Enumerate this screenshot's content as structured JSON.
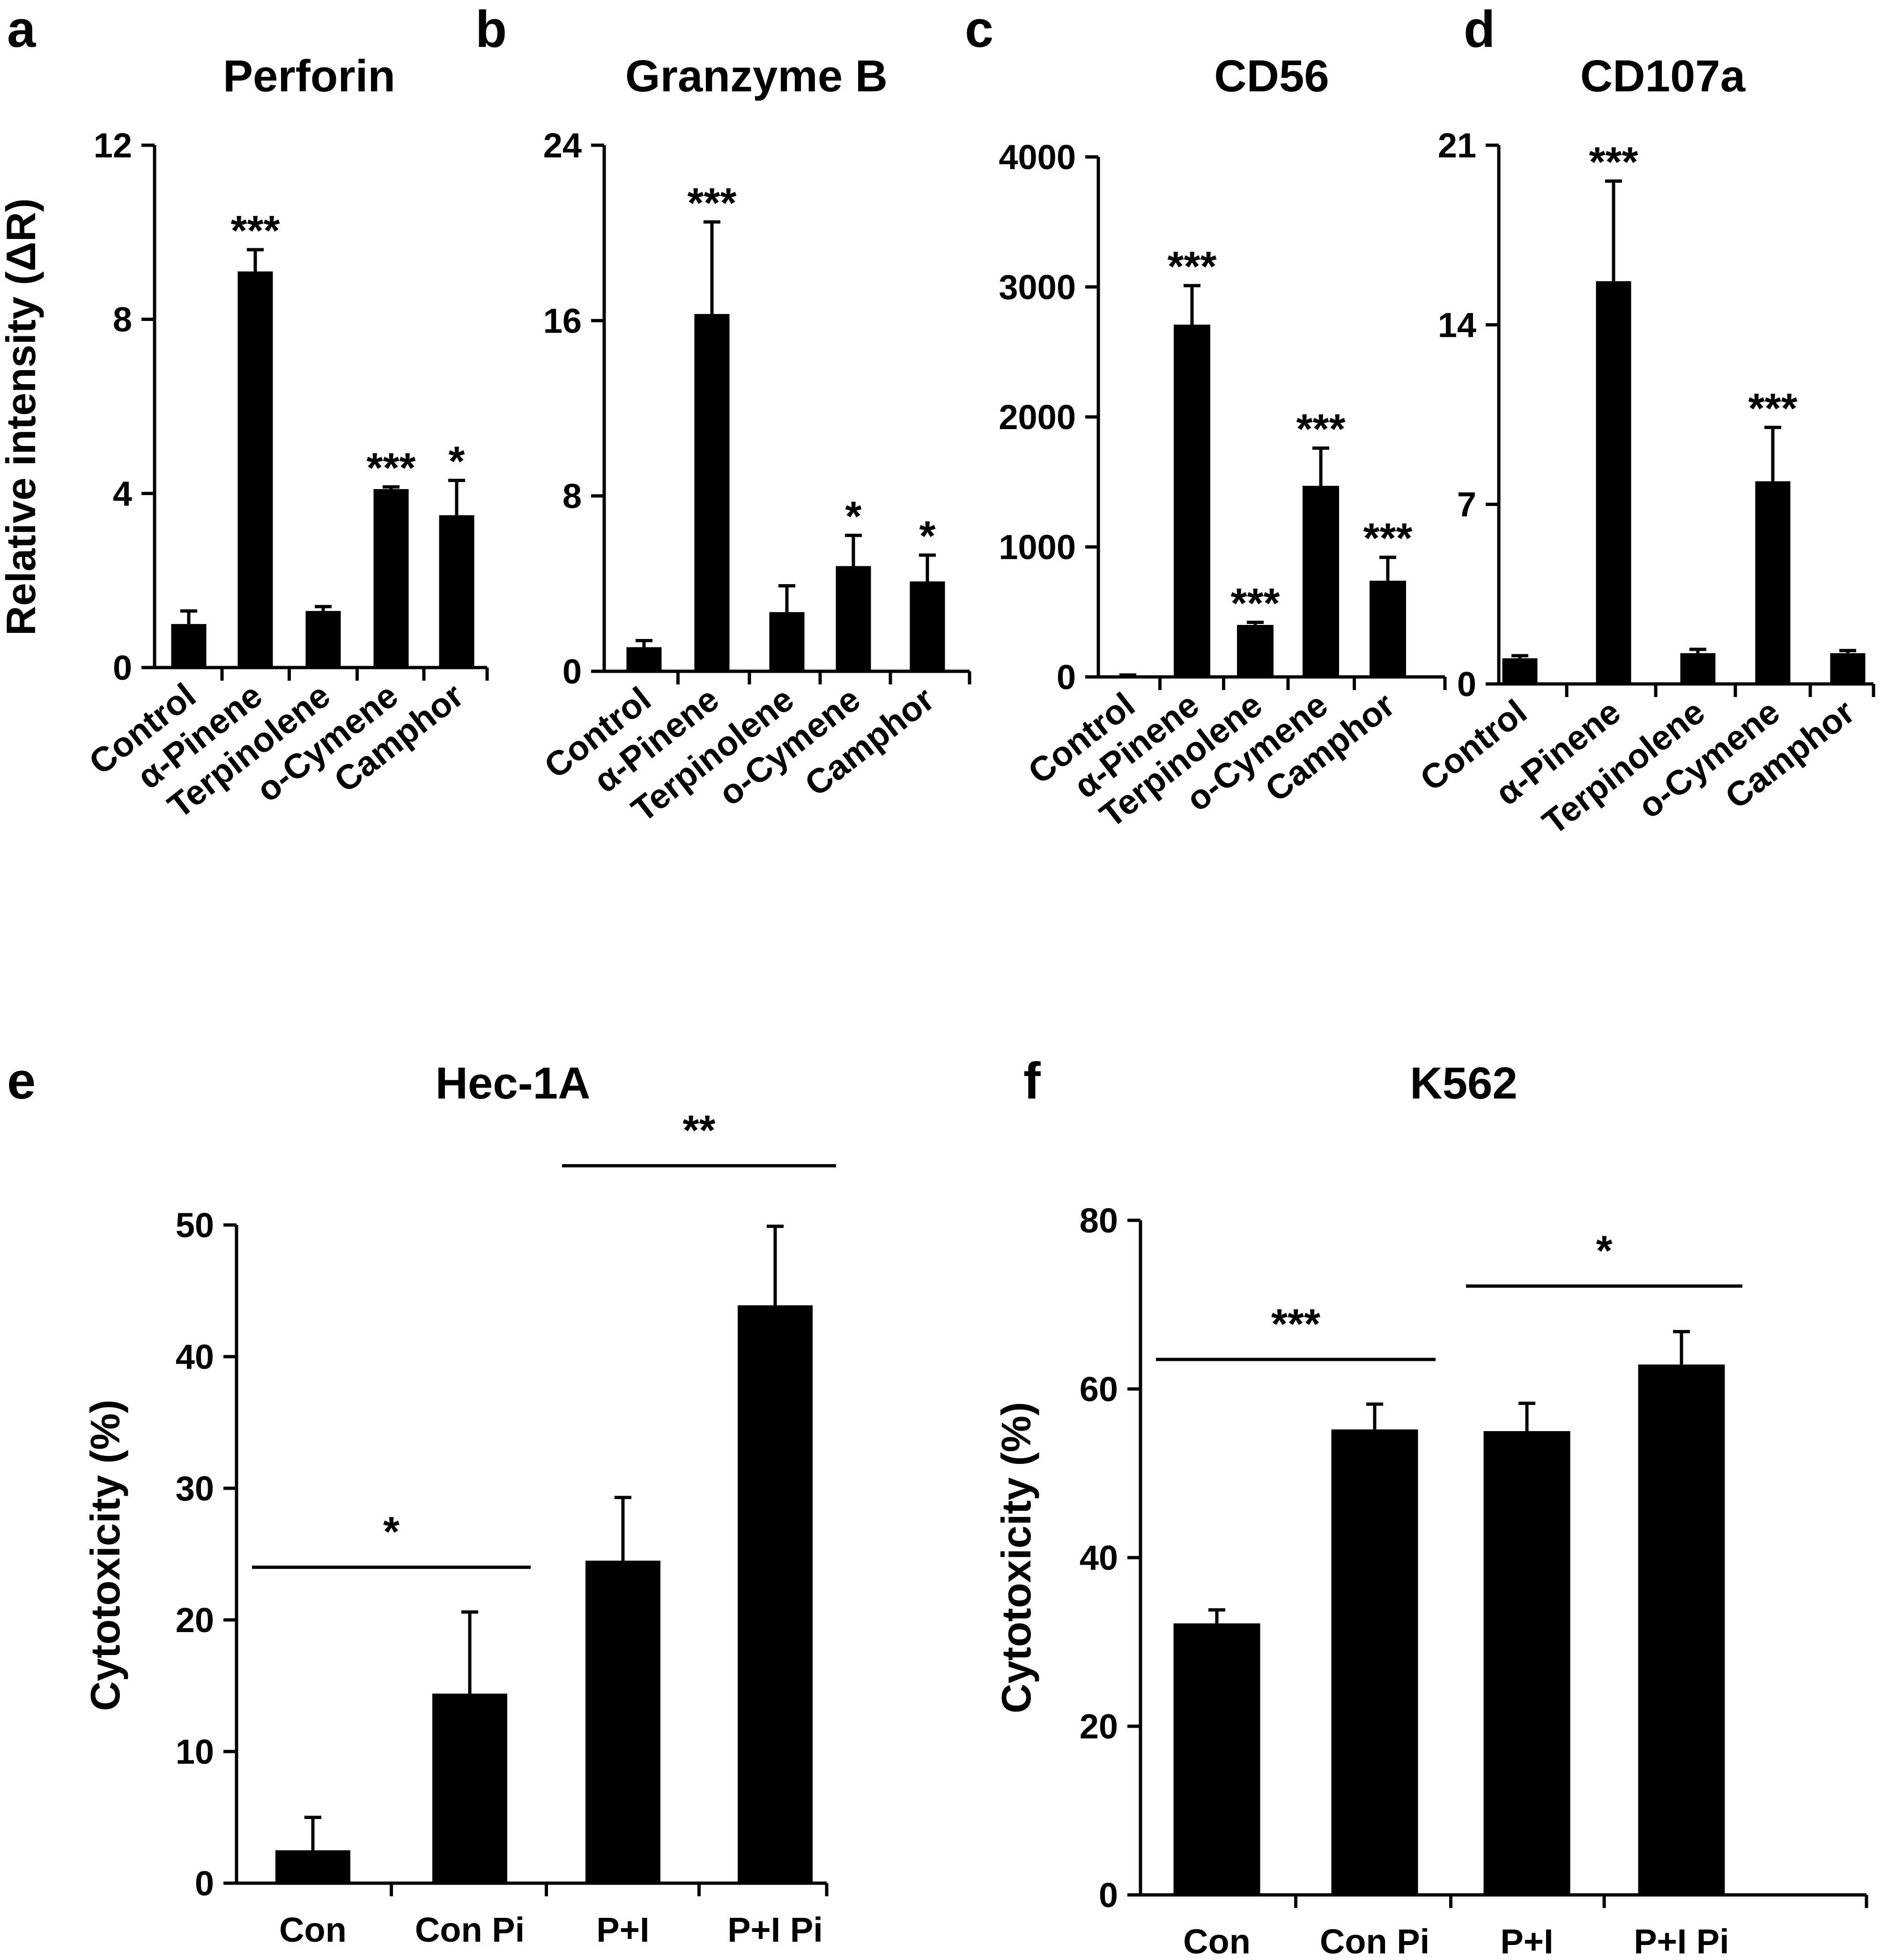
{
  "chart_data": [
    {
      "panel": "a",
      "type": "bar",
      "title": "Perforin",
      "ylabel": "Relative intensity (ΔR)",
      "xlabel": "",
      "categories": [
        "Control",
        "α-Pinene",
        "Terpinolene",
        "o-Cymene",
        "Camphor"
      ],
      "values": [
        1.0,
        9.1,
        1.3,
        4.1,
        3.5
      ],
      "errors": [
        0.3,
        0.5,
        0.1,
        0.05,
        0.8
      ],
      "significance": [
        "",
        "***",
        "",
        "***",
        "*"
      ],
      "ylim": [
        0,
        12
      ],
      "yticks": [
        0,
        4,
        8,
        12
      ]
    },
    {
      "panel": "b",
      "type": "bar",
      "title": "Granzyme B",
      "ylabel": "",
      "xlabel": "",
      "categories": [
        "Control",
        "α-Pinene",
        "Terpinolene",
        "o-Cymene",
        "Camphor"
      ],
      "values": [
        1.1,
        16.3,
        2.7,
        4.8,
        4.1
      ],
      "errors": [
        0.3,
        4.2,
        1.2,
        1.4,
        1.2
      ],
      "significance": [
        "",
        "***",
        "",
        "*",
        "*"
      ],
      "ylim": [
        0,
        24
      ],
      "yticks": [
        0,
        8,
        16,
        24
      ]
    },
    {
      "panel": "c",
      "type": "bar",
      "title": "CD56",
      "ylabel": "",
      "xlabel": "",
      "categories": [
        "Control",
        "α-Pinene",
        "Terpinolene",
        "o-Cymene",
        "Camphor"
      ],
      "values": [
        10,
        2710,
        400,
        1470,
        740
      ],
      "errors": [
        5,
        300,
        20,
        290,
        180
      ],
      "significance": [
        "",
        "***",
        "***",
        "***",
        "***"
      ],
      "ylim": [
        0,
        4000
      ],
      "yticks": [
        0,
        1000,
        2000,
        3000,
        4000
      ]
    },
    {
      "panel": "d",
      "type": "bar",
      "title": "CD107a",
      "ylabel": "",
      "xlabel": "",
      "categories": [
        "Control",
        "α-Pinene",
        "Terpinolene",
        "o-Cymene",
        "Camphor"
      ],
      "values": [
        1.0,
        15.7,
        1.2,
        7.9,
        1.2
      ],
      "errors": [
        0.1,
        3.9,
        0.15,
        2.1,
        0.1
      ],
      "significance": [
        "",
        "***",
        "",
        "***",
        ""
      ],
      "ylim": [
        0,
        21
      ],
      "yticks": [
        0,
        7,
        14,
        21
      ]
    },
    {
      "panel": "e",
      "type": "bar",
      "title": "Hec-1A",
      "ylabel": "Cytotoxicity (%)",
      "xlabel": "",
      "categories": [
        "Con",
        "Con Pi",
        "P+I",
        "P+I Pi"
      ],
      "values": [
        2.5,
        14.4,
        24.5,
        43.9
      ],
      "errors": [
        2.5,
        6.2,
        4.8,
        6.0
      ],
      "brackets": [
        {
          "from": 0,
          "to": 1,
          "label": "*",
          "level": 24
        },
        {
          "from": 2,
          "to": 3,
          "label": "**",
          "level": 54.5
        }
      ],
      "ylim": [
        0,
        50
      ],
      "yticks": [
        0,
        10,
        20,
        30,
        40,
        50
      ]
    },
    {
      "panel": "f",
      "type": "bar",
      "title": "K562",
      "ylabel": "Cytotoxicity (%)",
      "xlabel": "",
      "categories": [
        "Con",
        "Con Pi",
        "P+I",
        "P+I Pi"
      ],
      "values": [
        32.2,
        55.2,
        55.0,
        62.9
      ],
      "errors": [
        1.6,
        3.0,
        3.3,
        3.9
      ],
      "brackets": [
        {
          "from": 0,
          "to": 1,
          "label": "***",
          "level": 63.5
        },
        {
          "from": 2,
          "to": 3,
          "label": "*",
          "level": 72.2
        }
      ],
      "ylim": [
        0,
        80
      ],
      "yticks": [
        0,
        20,
        40,
        60,
        80
      ]
    }
  ]
}
